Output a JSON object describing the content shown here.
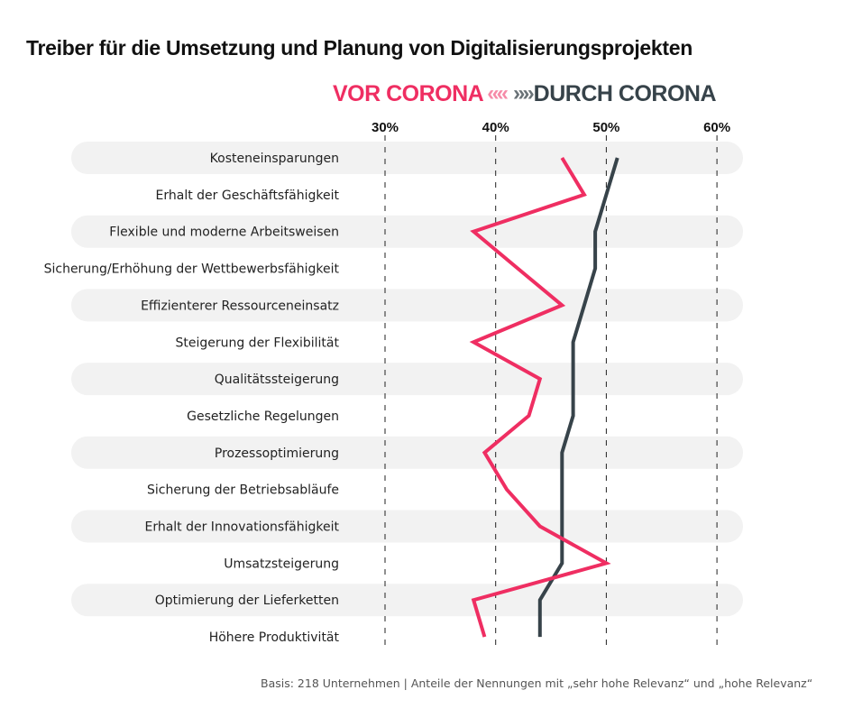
{
  "title": "Treiber für die Umsetzung und Planung von Digitalisierungsprojekten",
  "legend": {
    "vor_label": "VOR CORONA",
    "durch_label": "DURCH CORONA",
    "vor_chevron": "«",
    "durch_chevron": "»",
    "vor_color": "#ef2e62",
    "durch_color": "#37434a"
  },
  "footer": "Basis: 218 Unternehmen | Anteile der Nennungen mit „sehr hohe Relevanz“ und „hohe Relevanz“",
  "chart_data": {
    "type": "line",
    "orientation": "horizontal",
    "title": "Treiber für die Umsetzung und Planung von Digitalisierungsprojekten",
    "xlabel": "",
    "ylabel": "",
    "xlim": [
      30,
      60
    ],
    "x_ticks": [
      "30%",
      "40%",
      "50%",
      "60%"
    ],
    "x_tick_values": [
      30,
      40,
      50,
      60
    ],
    "grid": "vertical-dashed",
    "legend_position": "top-right",
    "categories": [
      "Kosteneinsparungen",
      "Erhalt der Geschäftsfähigkeit",
      "Flexible und moderne Arbeitsweisen",
      "Sicherung/Erhöhung der Wettbewerbsfähigkeit",
      "Effizienterer Ressourceneinsatz",
      "Steigerung der Flexibilität",
      "Qualitätssteigerung",
      "Gesetzliche Regelungen",
      "Prozessoptimierung",
      "Sicherung der Betriebsabläufe",
      "Erhalt der Innovationsfähigkeit",
      "Umsatzsteigerung",
      "Optimierung der Lieferketten",
      "Höhere Produktivität"
    ],
    "series": [
      {
        "name": "VOR CORONA",
        "color": "#ef2e62",
        "values": [
          46,
          48,
          38,
          42,
          46,
          38,
          44,
          43,
          39,
          41,
          44,
          50,
          38,
          39
        ]
      },
      {
        "name": "DURCH CORONA",
        "color": "#37434a",
        "values": [
          51,
          50,
          49,
          49,
          48,
          47,
          47,
          47,
          46,
          46,
          46,
          46,
          44,
          44
        ]
      }
    ],
    "note": "Basis: 218 Unternehmen | Anteile der Nennungen mit „sehr hohe Relevanz“ und „hohe Relevanz“"
  }
}
